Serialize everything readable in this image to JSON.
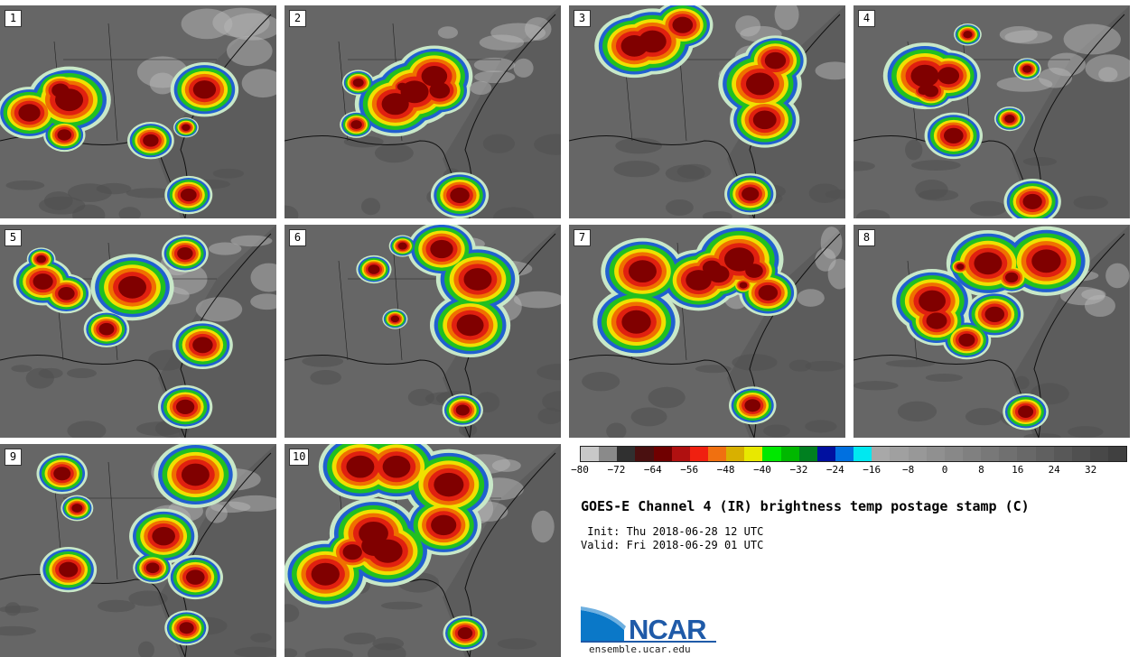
{
  "panels": [
    {
      "label": "1"
    },
    {
      "label": "2"
    },
    {
      "label": "3"
    },
    {
      "label": "4"
    },
    {
      "label": "5"
    },
    {
      "label": "6"
    },
    {
      "label": "7"
    },
    {
      "label": "8"
    },
    {
      "label": "9"
    },
    {
      "label": "10"
    }
  ],
  "colorbar": {
    "colors": [
      "#c8c8c8",
      "#8a8a8a",
      "#303030",
      "#4a1010",
      "#700000",
      "#b01010",
      "#f02010",
      "#f07010",
      "#d8b000",
      "#e8e800",
      "#00e800",
      "#00b800",
      "#008020",
      "#0010a0",
      "#0070e0",
      "#00e8f0",
      "#a8a8a8",
      "#a0a0a0",
      "#989898",
      "#909090",
      "#888888",
      "#808080",
      "#787878",
      "#707070",
      "#686868",
      "#606060",
      "#585858",
      "#505050",
      "#484848",
      "#404040"
    ],
    "ticks": [
      "−80",
      "−72",
      "−64",
      "−56",
      "−48",
      "−40",
      "−32",
      "−24",
      "−16",
      "−8",
      "0",
      "8",
      "16",
      "24",
      "32"
    ]
  },
  "title": "GOES-E Channel 4 (IR) brightness temp postage stamp (C)",
  "init": " Init: Thu 2018-06-28 12 UTC",
  "valid": "Valid: Fri 2018-06-29 01 UTC",
  "logo_text": "NCAR",
  "url": "ensemble.ucar.edu"
}
